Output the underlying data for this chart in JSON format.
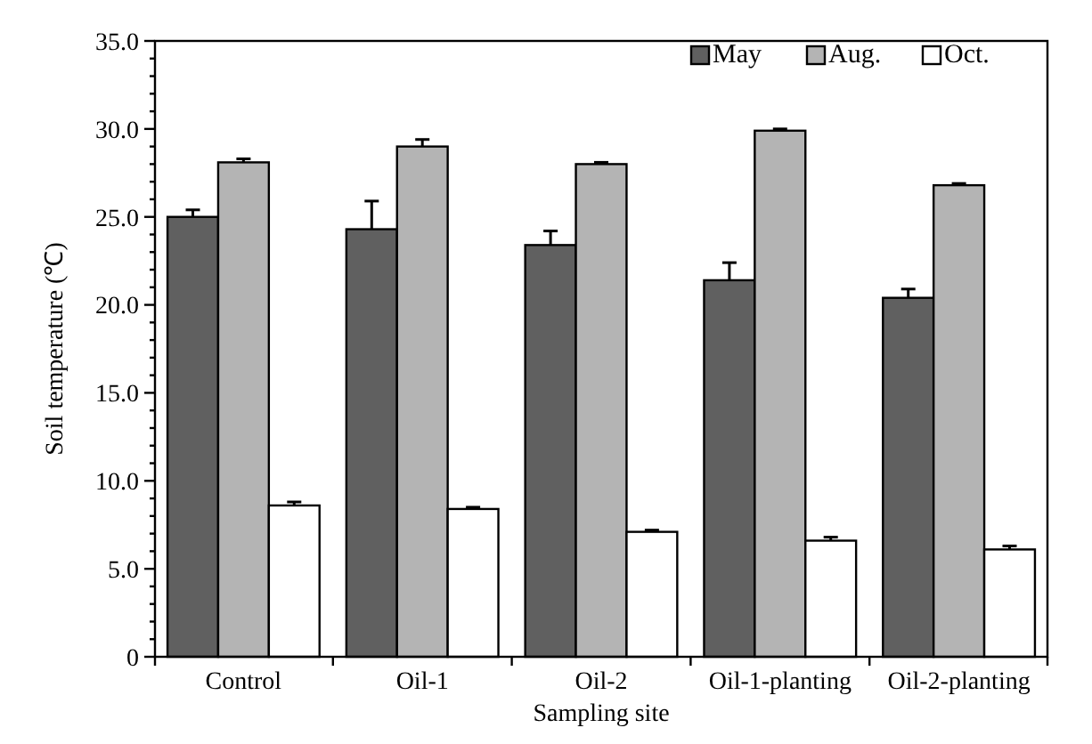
{
  "chart_data": {
    "type": "bar",
    "xlabel": "Sampling site",
    "ylabel": "Soil temperature (℃)",
    "categories": [
      "Control",
      "Oil-1",
      "Oil-2",
      "Oil-1-planting",
      "Oil-2-planting"
    ],
    "series": [
      {
        "name": "May",
        "color": "#606060",
        "values": [
          25.0,
          24.3,
          23.4,
          21.4,
          20.4
        ],
        "errors": [
          [
            25.0,
            25.4
          ],
          [
            24.3,
            25.9
          ],
          [
            23.4,
            24.2
          ],
          [
            21.4,
            22.4
          ],
          [
            20.4,
            20.9
          ]
        ]
      },
      {
        "name": "Aug.",
        "color": "#b4b4b4",
        "values": [
          28.1,
          29.0,
          28.0,
          29.9,
          26.8
        ],
        "errors": [
          [
            28.1,
            28.3
          ],
          [
            29.0,
            29.4
          ],
          [
            28.0,
            28.1
          ],
          [
            29.9,
            30.0
          ],
          [
            26.8,
            26.9
          ]
        ]
      },
      {
        "name": "Oct.",
        "color": "#ffffff",
        "values": [
          8.6,
          8.4,
          7.1,
          6.6,
          6.1
        ],
        "errors": [
          [
            8.6,
            8.8
          ],
          [
            8.4,
            8.5
          ],
          [
            7.1,
            7.2
          ],
          [
            6.6,
            6.8
          ],
          [
            6.1,
            6.3
          ]
        ]
      }
    ],
    "ylim": [
      0,
      35
    ],
    "yticks": [
      0,
      {
        "value": 1,
        "label": null
      },
      {
        "value": 2,
        "label": null
      },
      {
        "value": 3,
        "label": null
      },
      {
        "value": 4,
        "label": null
      },
      "5.0",
      {
        "value": 6,
        "label": null
      },
      {
        "value": 7,
        "label": null
      },
      {
        "value": 8,
        "label": null
      },
      {
        "value": 9,
        "label": null
      },
      {
        "value": 10,
        "label": "10.0"
      },
      {
        "value": 11,
        "label": null
      },
      {
        "value": 12,
        "label": null
      },
      {
        "value": 13,
        "label": null
      },
      {
        "value": 14,
        "label": null
      },
      {
        "value": 15,
        "label": "15.0"
      },
      {
        "value": 16,
        "label": null
      },
      {
        "value": 17,
        "label": null
      },
      {
        "value": 18,
        "label": null
      },
      {
        "value": 19,
        "label": null
      },
      {
        "value": 20,
        "label": "20.0"
      },
      {
        "value": 21,
        "label": null
      },
      {
        "value": 22,
        "label": null
      },
      {
        "value": 23,
        "label": null
      },
      {
        "value": 24,
        "label": null
      },
      {
        "value": 25,
        "label": "25.0"
      },
      {
        "value": 26,
        "label": null
      },
      {
        "value": 27,
        "label": null
      },
      {
        "value": 28,
        "label": null
      },
      {
        "value": 29,
        "label": null
      },
      {
        "value": 30,
        "label": "30.0"
      },
      {
        "value": 31,
        "label": null
      },
      {
        "value": 32,
        "label": null
      },
      {
        "value": 33,
        "label": null
      },
      {
        "value": 34,
        "label": null
      },
      {
        "value": 35,
        "label": "35.0"
      }
    ],
    "grid": false,
    "legend": "top right"
  }
}
